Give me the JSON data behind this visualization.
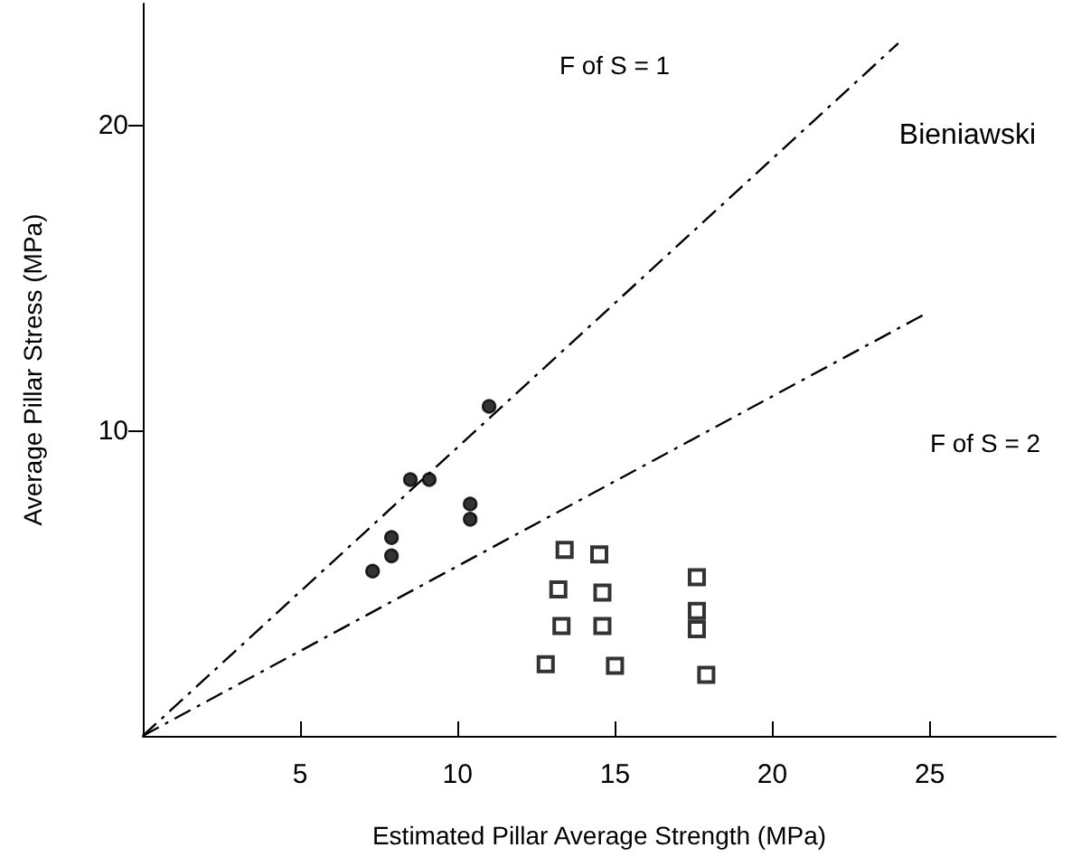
{
  "chart_data": {
    "type": "scatter",
    "title": "Bieniawski",
    "xlabel": "Estimated Pillar Average Strength (MPa)",
    "ylabel": "Average Pillar Stress (MPa)",
    "annotations": [
      "F of S = 1",
      "F of S = 2"
    ],
    "series": [
      {
        "type": "line",
        "color": "#000000",
        "x": [
          0,
          24
        ],
        "values": [
          0,
          22.7
        ],
        "marker": "none",
        "line_style": "dashed"
      },
      {
        "type": "line",
        "color": "#000000",
        "x": [
          0,
          24.8
        ],
        "values": [
          0,
          13.8
        ],
        "marker": "none",
        "line_style": "dashed"
      },
      {
        "color": "#000000",
        "marker": "circle",
        "x": [
          11.0,
          8.5,
          9.1,
          10.4,
          10.4,
          7.9,
          7.9,
          7.3
        ],
        "values": [
          10.8,
          8.4,
          8.4,
          7.6,
          7.1,
          6.5,
          5.9,
          5.4
        ]
      },
      {
        "color": "#000000",
        "marker": "square",
        "x": [
          13.4,
          14.5,
          13.2,
          14.6,
          13.3,
          14.6,
          12.8,
          15.0,
          17.6,
          17.6,
          17.6,
          17.9
        ],
        "values": [
          6.1,
          5.95,
          4.8,
          4.7,
          3.6,
          3.6,
          2.35,
          2.3,
          5.2,
          4.1,
          3.5,
          2.0
        ]
      }
    ],
    "xlim": [
      0,
      29
    ],
    "ylim": [
      0,
      24
    ],
    "xticks": [
      5,
      10,
      15,
      20,
      25
    ],
    "yticks": [
      10,
      20
    ],
    "grid": false
  }
}
